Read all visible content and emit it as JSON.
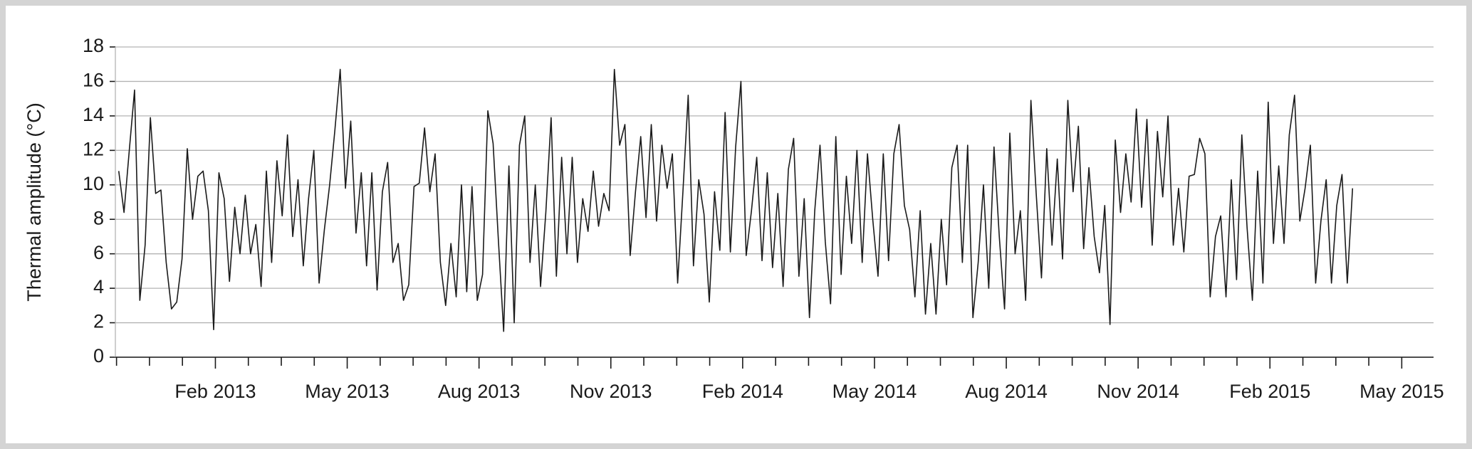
{
  "chart_data": {
    "type": "line",
    "ylabel": "Thermal amplitude (°C)",
    "color": "#1a1a1a",
    "grid": true,
    "ylim": [
      0,
      18
    ],
    "yticks": [
      0,
      2,
      4,
      6,
      8,
      10,
      12,
      14,
      16,
      18
    ],
    "xlim": [
      2012.8936,
      2015.3936
    ],
    "xticks": [
      {
        "value": 2013.0833,
        "label": "Feb 2013"
      },
      {
        "value": 2013.3333,
        "label": "May 2013"
      },
      {
        "value": 2013.5833,
        "label": "Aug 2013"
      },
      {
        "value": 2013.8333,
        "label": "Nov 2013"
      },
      {
        "value": 2014.0833,
        "label": "Feb 2014"
      },
      {
        "value": 2014.3333,
        "label": "May 2014"
      },
      {
        "value": 2014.5833,
        "label": "Aug 2014"
      },
      {
        "value": 2014.8333,
        "label": "Nov 2014"
      },
      {
        "value": 2015.0833,
        "label": "Feb 2015"
      },
      {
        "value": 2015.3333,
        "label": "May 2015"
      }
    ],
    "xminor_ticks": [
      2012.8958,
      2012.9583,
      2013.0208,
      2013.1458,
      2013.2083,
      2013.2708,
      2013.3958,
      2013.4583,
      2013.5208,
      2013.6458,
      2013.7083,
      2013.7708,
      2013.8958,
      2013.9583,
      2014.0208,
      2014.1458,
      2014.2083,
      2014.2708,
      2014.3958,
      2014.4583,
      2014.5208,
      2014.6458,
      2014.7083,
      2014.7708,
      2014.8958,
      2014.9583,
      2015.0208,
      2015.1458,
      2015.2083,
      2015.2708
    ],
    "x": [
      2012.9,
      2012.91,
      2012.92,
      2012.93,
      2012.94,
      2012.95,
      2012.96,
      2012.97,
      2012.98,
      2012.99,
      2013,
      2013.01,
      2013.02,
      2013.03,
      2013.04,
      2013.05,
      2013.06,
      2013.07,
      2013.08,
      2013.09,
      2013.1,
      2013.11,
      2013.12,
      2013.13,
      2013.14,
      2013.15,
      2013.16,
      2013.17,
      2013.18,
      2013.19,
      2013.2,
      2013.21,
      2013.22,
      2013.23,
      2013.24,
      2013.25,
      2013.26,
      2013.27,
      2013.28,
      2013.29,
      2013.3,
      2013.31,
      2013.32,
      2013.33,
      2013.34,
      2013.35,
      2013.36,
      2013.37,
      2013.38,
      2013.39,
      2013.4,
      2013.41,
      2013.42,
      2013.43,
      2013.44,
      2013.45,
      2013.46,
      2013.47,
      2013.48,
      2013.49,
      2013.5,
      2013.51,
      2013.52,
      2013.53,
      2013.54,
      2013.55,
      2013.56,
      2013.57,
      2013.58,
      2013.59,
      2013.6,
      2013.61,
      2013.62,
      2013.63,
      2013.64,
      2013.65,
      2013.66,
      2013.67,
      2013.68,
      2013.69,
      2013.7,
      2013.71,
      2013.72,
      2013.73,
      2013.74,
      2013.75,
      2013.76,
      2013.77,
      2013.78,
      2013.79,
      2013.8,
      2013.81,
      2013.82,
      2013.83,
      2013.84,
      2013.85,
      2013.86,
      2013.87,
      2013.88,
      2013.89,
      2013.9,
      2013.91,
      2013.92,
      2013.93,
      2013.94,
      2013.95,
      2013.96,
      2013.97,
      2013.98,
      2013.99,
      2014,
      2014.01,
      2014.02,
      2014.03,
      2014.04,
      2014.05,
      2014.06,
      2014.07,
      2014.08,
      2014.09,
      2014.1,
      2014.11,
      2014.12,
      2014.13,
      2014.14,
      2014.15,
      2014.16,
      2014.17,
      2014.18,
      2014.19,
      2014.2,
      2014.21,
      2014.22,
      2014.23,
      2014.24,
      2014.25,
      2014.26,
      2014.27,
      2014.28,
      2014.29,
      2014.3,
      2014.31,
      2014.32,
      2014.33,
      2014.34,
      2014.35,
      2014.36,
      2014.37,
      2014.38,
      2014.39,
      2014.4,
      2014.41,
      2014.42,
      2014.43,
      2014.44,
      2014.45,
      2014.46,
      2014.47,
      2014.48,
      2014.49,
      2014.5,
      2014.51,
      2014.52,
      2014.53,
      2014.54,
      2014.55,
      2014.56,
      2014.57,
      2014.58,
      2014.59,
      2014.6,
      2014.61,
      2014.62,
      2014.63,
      2014.64,
      2014.65,
      2014.66,
      2014.67,
      2014.68,
      2014.69,
      2014.7,
      2014.71,
      2014.72,
      2014.73,
      2014.74,
      2014.75,
      2014.76,
      2014.77,
      2014.78,
      2014.79,
      2014.8,
      2014.81,
      2014.82,
      2014.83,
      2014.84,
      2014.85,
      2014.86,
      2014.87,
      2014.88,
      2014.89,
      2014.9,
      2014.91,
      2014.92,
      2014.93,
      2014.94,
      2014.95,
      2014.96,
      2014.97,
      2014.98,
      2014.99,
      2015,
      2015.01,
      2015.02,
      2015.03,
      2015.04,
      2015.05,
      2015.06,
      2015.07,
      2015.08,
      2015.09,
      2015.1,
      2015.11,
      2015.12,
      2015.13,
      2015.14,
      2015.15,
      2015.16,
      2015.17,
      2015.18,
      2015.19,
      2015.2,
      2015.21,
      2015.22,
      2015.23,
      2015.24
    ],
    "values": [
      10.8,
      8.4,
      12,
      15.5,
      3.3,
      6.5,
      13.9,
      9.5,
      9.7,
      5.5,
      2.8,
      3.2,
      5.7,
      12.1,
      8,
      10.5,
      10.8,
      8.5,
      1.6,
      10.7,
      9.2,
      4.4,
      8.7,
      6,
      9.4,
      6,
      7.7,
      4.1,
      10.8,
      5.5,
      11.4,
      8.2,
      12.9,
      7,
      10.3,
      5.3,
      9.2,
      12,
      4.3,
      7.4,
      10,
      13.2,
      16.7,
      9.8,
      13.7,
      7.2,
      10.7,
      5.3,
      10.7,
      3.9,
      9.6,
      11.3,
      5.5,
      6.6,
      3.3,
      4.2,
      9.9,
      10.1,
      13.3,
      9.6,
      11.8,
      5.5,
      3,
      6.6,
      3.5,
      10,
      3.8,
      9.9,
      3.3,
      4.8,
      14.3,
      12.4,
      6.8,
      1.5,
      11.1,
      2,
      12.3,
      14,
      5.5,
      10,
      4.1,
      8.4,
      13.9,
      4.7,
      11.6,
      6,
      11.6,
      5.5,
      9.2,
      7.3,
      10.8,
      7.6,
      9.5,
      8.5,
      16.7,
      12.3,
      13.5,
      5.9,
      9.6,
      12.8,
      8.1,
      13.5,
      7.9,
      12.3,
      9.8,
      11.8,
      4.3,
      9.6,
      15.2,
      5.3,
      10.3,
      8.3,
      3.2,
      9.6,
      6.2,
      14.2,
      6.1,
      12.2,
      16,
      5.9,
      8.5,
      11.6,
      5.6,
      10.7,
      5.2,
      9.5,
      4.1,
      10.9,
      12.7,
      4.7,
      9.2,
      2.3,
      8.5,
      12.3,
      6.7,
      3.1,
      12.8,
      4.8,
      10.5,
      6.6,
      12,
      5.5,
      11.8,
      8,
      4.7,
      11.8,
      5.6,
      11.8,
      13.5,
      8.8,
      7.4,
      3.5,
      8.5,
      2.5,
      6.6,
      2.5,
      8,
      4.2,
      11,
      12.3,
      5.5,
      12.3,
      2.3,
      5.5,
      10,
      4,
      12.2,
      7,
      2.8,
      13,
      6,
      8.5,
      3.3,
      14.9,
      9.5,
      4.6,
      12.1,
      6.5,
      11.5,
      5.7,
      14.9,
      9.6,
      13.4,
      6.3,
      11,
      7,
      4.9,
      8.8,
      1.9,
      12.6,
      8.4,
      11.8,
      9,
      14.4,
      8.7,
      13.8,
      6.5,
      13.1,
      9.3,
      14,
      6.5,
      9.8,
      6.1,
      10.5,
      10.6,
      12.7,
      11.8,
      3.5,
      7,
      8.2,
      3.5,
      10.3,
      4.5,
      12.9,
      7.5,
      3.3,
      10.8,
      4.3,
      14.8,
      6.6,
      11.1,
      6.6,
      12.9,
      15.2,
      7.9,
      9.8,
      12.3,
      4.3,
      7.9,
      10.3,
      4.3,
      8.8,
      10.6,
      4.3,
      9.8
    ]
  }
}
